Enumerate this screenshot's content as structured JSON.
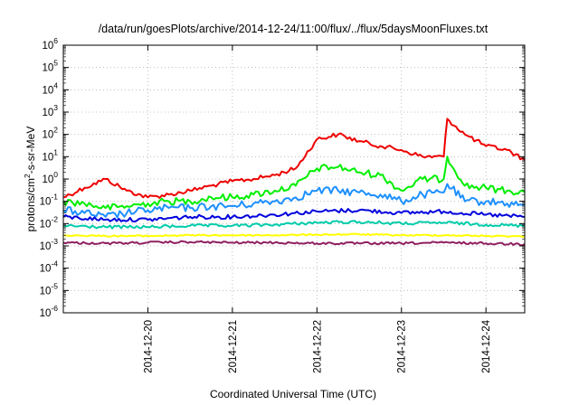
{
  "chart_data": {
    "type": "line",
    "title": "/data/run/goesPlots/archive/2014-12-24/11:00/flux/../flux/5daysMoonFluxes.txt",
    "xlabel": "Coordinated Universal Time (UTC)",
    "ylabel": {
      "prefix": "protons/cm",
      "exp": "2",
      "suffix": "-s-sr-MeV"
    },
    "yscale": "log",
    "ylim": [
      1e-06,
      1000000.0
    ],
    "y_ticks": [
      {
        "value": 1e-06,
        "base": "10",
        "exp": "-6"
      },
      {
        "value": 1e-05,
        "base": "10",
        "exp": "-5"
      },
      {
        "value": 0.0001,
        "base": "10",
        "exp": "-4"
      },
      {
        "value": 0.001,
        "base": "10",
        "exp": "-3"
      },
      {
        "value": 0.01,
        "base": "10",
        "exp": "-2"
      },
      {
        "value": 0.1,
        "base": "10",
        "exp": "-1"
      },
      {
        "value": 1,
        "base": "10",
        "exp": "0"
      },
      {
        "value": 10,
        "base": "10",
        "exp": "1"
      },
      {
        "value": 100,
        "base": "10",
        "exp": "2"
      },
      {
        "value": 1000,
        "base": "10",
        "exp": "3"
      },
      {
        "value": 10000,
        "base": "10",
        "exp": "4"
      },
      {
        "value": 100000,
        "base": "10",
        "exp": "5"
      },
      {
        "value": 1000000,
        "base": "10",
        "exp": "6"
      }
    ],
    "xlim": [
      "2014-12-19T00:00",
      "2014-12-24T11:00"
    ],
    "x_ticks": [
      "2014-12-20",
      "2014-12-21",
      "2014-12-22",
      "2014-12-23",
      "2014-12-24"
    ],
    "grid": true,
    "series_colors": [
      "#ee0000",
      "#00ee00",
      "#1e90ff",
      "#0000dd",
      "#00ccaa",
      "#ffff00",
      "#902060"
    ],
    "series": [
      {
        "color": "#ee0000",
        "x": [
          "2014-12-19T00:00",
          "2014-12-19T06:00",
          "2014-12-19T12:00",
          "2014-12-19T18:00",
          "2014-12-20T00:00",
          "2014-12-20T06:00",
          "2014-12-20T12:00",
          "2014-12-20T18:00",
          "2014-12-21T00:00",
          "2014-12-21T06:00",
          "2014-12-21T12:00",
          "2014-12-21T18:00",
          "2014-12-22T00:00",
          "2014-12-22T06:00",
          "2014-12-22T12:00",
          "2014-12-22T18:00",
          "2014-12-23T00:00",
          "2014-12-23T06:00",
          "2014-12-23T12:00",
          "2014-12-23T13:00",
          "2014-12-23T18:00",
          "2014-12-24T00:00",
          "2014-12-24T06:00",
          "2014-12-24T11:00"
        ],
        "y": [
          0.15,
          0.4,
          1.0,
          0.3,
          0.15,
          0.2,
          0.3,
          0.5,
          0.8,
          1.0,
          1.5,
          3,
          60,
          100,
          50,
          30,
          20,
          10,
          10,
          500,
          100,
          30,
          20,
          7
        ]
      },
      {
        "color": "#00ee00",
        "x": [
          "2014-12-19T00:00",
          "2014-12-19T06:00",
          "2014-12-19T12:00",
          "2014-12-19T18:00",
          "2014-12-20T00:00",
          "2014-12-20T06:00",
          "2014-12-20T12:00",
          "2014-12-20T18:00",
          "2014-12-21T00:00",
          "2014-12-21T06:00",
          "2014-12-21T12:00",
          "2014-12-21T18:00",
          "2014-12-22T00:00",
          "2014-12-22T06:00",
          "2014-12-22T12:00",
          "2014-12-22T18:00",
          "2014-12-23T00:00",
          "2014-12-23T06:00",
          "2014-12-23T12:00",
          "2014-12-23T13:00",
          "2014-12-23T18:00",
          "2014-12-24T00:00",
          "2014-12-24T06:00",
          "2014-12-24T11:00"
        ],
        "y": [
          0.1,
          0.08,
          0.05,
          0.06,
          0.08,
          0.1,
          0.1,
          0.15,
          0.15,
          0.2,
          0.3,
          0.5,
          3,
          3.5,
          2,
          1.5,
          0.3,
          1,
          1,
          10,
          0.5,
          0.4,
          0.3,
          0.25
        ]
      },
      {
        "color": "#1e90ff",
        "x": [
          "2014-12-19T00:00",
          "2014-12-19T06:00",
          "2014-12-19T12:00",
          "2014-12-19T18:00",
          "2014-12-20T00:00",
          "2014-12-20T06:00",
          "2014-12-20T12:00",
          "2014-12-20T18:00",
          "2014-12-21T00:00",
          "2014-12-21T06:00",
          "2014-12-21T12:00",
          "2014-12-21T18:00",
          "2014-12-22T00:00",
          "2014-12-22T06:00",
          "2014-12-22T12:00",
          "2014-12-22T18:00",
          "2014-12-23T00:00",
          "2014-12-23T06:00",
          "2014-12-23T12:00",
          "2014-12-23T13:00",
          "2014-12-23T18:00",
          "2014-12-24T00:00",
          "2014-12-24T06:00",
          "2014-12-24T11:00"
        ],
        "y": [
          0.04,
          0.03,
          0.02,
          0.03,
          0.04,
          0.05,
          0.05,
          0.06,
          0.06,
          0.08,
          0.1,
          0.15,
          0.3,
          0.3,
          0.25,
          0.2,
          0.1,
          0.2,
          0.25,
          0.6,
          0.1,
          0.1,
          0.08,
          0.07
        ]
      },
      {
        "color": "#0000dd",
        "x": [
          "2014-12-19T00:00",
          "2014-12-19T12:00",
          "2014-12-20T00:00",
          "2014-12-20T12:00",
          "2014-12-21T00:00",
          "2014-12-21T12:00",
          "2014-12-22T00:00",
          "2014-12-22T12:00",
          "2014-12-23T00:00",
          "2014-12-23T12:00",
          "2014-12-24T00:00",
          "2014-12-24T11:00"
        ],
        "y": [
          0.02,
          0.015,
          0.015,
          0.02,
          0.02,
          0.025,
          0.035,
          0.04,
          0.03,
          0.035,
          0.025,
          0.02
        ]
      },
      {
        "color": "#00ccaa",
        "x": [
          "2014-12-19T00:00",
          "2014-12-19T12:00",
          "2014-12-20T00:00",
          "2014-12-20T12:00",
          "2014-12-21T00:00",
          "2014-12-21T12:00",
          "2014-12-22T00:00",
          "2014-12-22T12:00",
          "2014-12-23T00:00",
          "2014-12-23T12:00",
          "2014-12-24T00:00",
          "2014-12-24T11:00"
        ],
        "y": [
          0.008,
          0.007,
          0.007,
          0.008,
          0.008,
          0.009,
          0.011,
          0.012,
          0.01,
          0.011,
          0.009,
          0.008
        ]
      },
      {
        "color": "#ffff00",
        "x": [
          "2014-12-19T00:00",
          "2014-12-19T12:00",
          "2014-12-20T00:00",
          "2014-12-20T12:00",
          "2014-12-21T00:00",
          "2014-12-21T12:00",
          "2014-12-22T00:00",
          "2014-12-22T12:00",
          "2014-12-23T00:00",
          "2014-12-23T12:00",
          "2014-12-24T00:00",
          "2014-12-24T11:00"
        ],
        "y": [
          0.003,
          0.0028,
          0.0028,
          0.003,
          0.003,
          0.003,
          0.0032,
          0.0033,
          0.003,
          0.003,
          0.0028,
          0.0027
        ]
      },
      {
        "color": "#902060",
        "x": [
          "2014-12-19T00:00",
          "2014-12-19T12:00",
          "2014-12-20T00:00",
          "2014-12-20T12:00",
          "2014-12-21T00:00",
          "2014-12-21T12:00",
          "2014-12-22T00:00",
          "2014-12-22T12:00",
          "2014-12-23T00:00",
          "2014-12-23T12:00",
          "2014-12-24T00:00",
          "2014-12-24T11:00"
        ],
        "y": [
          0.0014,
          0.0013,
          0.0014,
          0.0015,
          0.0014,
          0.0014,
          0.0013,
          0.0013,
          0.0013,
          0.0014,
          0.0013,
          0.0012
        ]
      }
    ]
  }
}
